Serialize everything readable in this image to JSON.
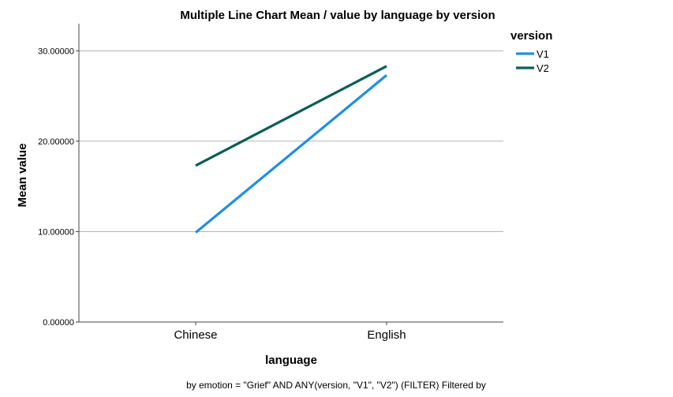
{
  "chart_data": {
    "type": "line",
    "title": "Multiple Line Chart Mean /  value by language by version",
    "xlabel": "language",
    "ylabel": "Mean value",
    "categories": [
      "Chinese",
      "English"
    ],
    "ylim": [
      0,
      33
    ],
    "y_ticks": [
      "0.00000",
      "10.00000",
      "20.00000",
      "30.00000"
    ],
    "y_tick_values": [
      0,
      10,
      20,
      30
    ],
    "grid": true,
    "legend_title": "version",
    "legend_position": "top-right",
    "series": [
      {
        "name": "V1",
        "color": "#1f8fe0",
        "values": [
          9.9,
          27.3
        ]
      },
      {
        "name": "V2",
        "color": "#0b5e57",
        "values": [
          17.3,
          28.3
        ]
      }
    ],
    "footnote": "by emotion = \"Grief\" AND ANY(version, \"V1\", \"V2\") (FILTER) Filtered by"
  }
}
